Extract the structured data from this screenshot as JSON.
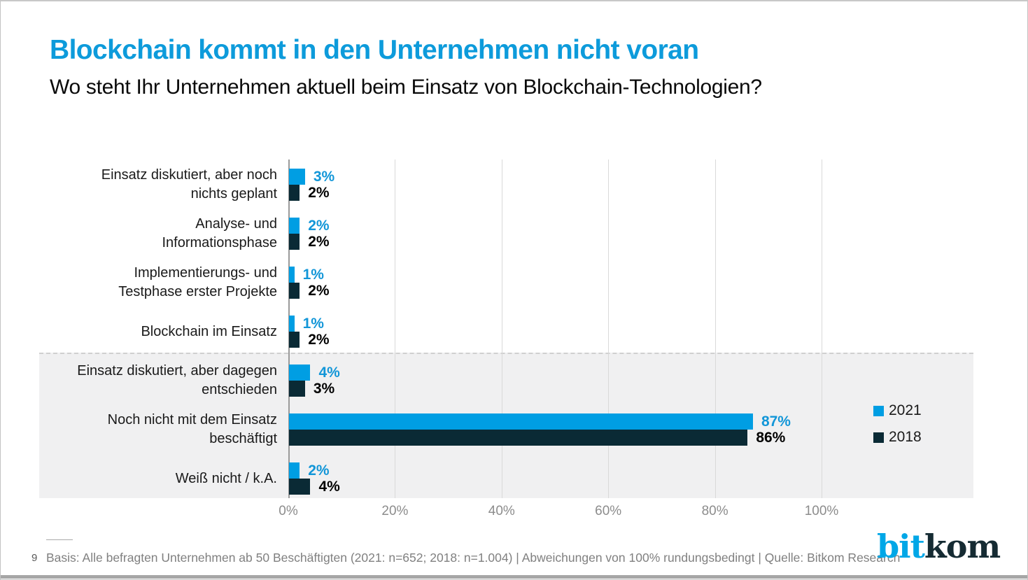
{
  "page": {
    "title": "Blockchain kommt in den Unternehmen nicht voran",
    "subtitle": "Wo steht Ihr Unternehmen aktuell beim Einsatz von Blockchain-Technologien?",
    "footnote_number": "9",
    "footnote": "Basis: Alle befragten Unternehmen ab 50 Beschäftigten (2021: n=652; 2018: n=1.004) | Abweichungen von 100% rundungsbedingt | Quelle: Bitkom Research",
    "logo_bit": "bit",
    "logo_kom": "kom"
  },
  "colors": {
    "title_blue": "#0d9bdb",
    "bar_blue": "#009ee3",
    "bar_dark": "#0a2a35",
    "value_blue": "#1296d8",
    "value_dark": "#000000",
    "band_gray": "#f0f0f1",
    "grid_gray": "#d9d9d9",
    "axis_gray": "#9a9a9a",
    "tick_text": "#8c8c8c",
    "footer_text": "#808080"
  },
  "chart_data": {
    "type": "bar",
    "orientation": "horizontal",
    "title": "Blockchain kommt in den Unternehmen nicht voran",
    "subtitle": "Wo steht Ihr Unternehmen aktuell beim Einsatz von Blockchain-Technologien?",
    "categories": [
      "Einsatz diskutiert, aber noch nichts geplant",
      "Analyse- und Informationsphase",
      "Implementierungs- und Testphase erster Projekte",
      "Blockchain im Einsatz",
      "Einsatz diskutiert, aber dagegen entschieden",
      "Noch nicht mit dem Einsatz beschäftigt",
      "Weiß nicht / k.A."
    ],
    "category_lines": [
      [
        "Einsatz diskutiert, aber noch",
        "nichts geplant"
      ],
      [
        "Analyse- und",
        "Informationsphase"
      ],
      [
        "Implementierungs- und",
        "Testphase erster Projekte"
      ],
      [
        "Blockchain im Einsatz"
      ],
      [
        "Einsatz diskutiert, aber dagegen",
        "entschieden"
      ],
      [
        "Noch nicht mit dem Einsatz",
        "beschäftigt"
      ],
      [
        "Weiß nicht / k.A."
      ]
    ],
    "series": [
      {
        "name": "2021",
        "color": "#009ee3",
        "label_color": "#1296d8",
        "values": [
          3,
          2,
          1,
          1,
          4,
          87,
          2
        ]
      },
      {
        "name": "2018",
        "color": "#0a2a35",
        "label_color": "#000000",
        "values": [
          2,
          2,
          2,
          2,
          3,
          86,
          4
        ]
      }
    ],
    "value_suffix": "%",
    "xlim": [
      0,
      100
    ],
    "x_ticks": [
      {
        "value": 0,
        "label": "0%"
      },
      {
        "value": 20,
        "label": "20%"
      },
      {
        "value": 40,
        "label": "40%"
      },
      {
        "value": 60,
        "label": "60%"
      },
      {
        "value": 80,
        "label": "80%"
      },
      {
        "value": 100,
        "label": "100%"
      }
    ],
    "grid": true,
    "legend": [
      "2021",
      "2018"
    ],
    "legend_position": "right",
    "highlight_rows": [
      4,
      5,
      6
    ]
  }
}
